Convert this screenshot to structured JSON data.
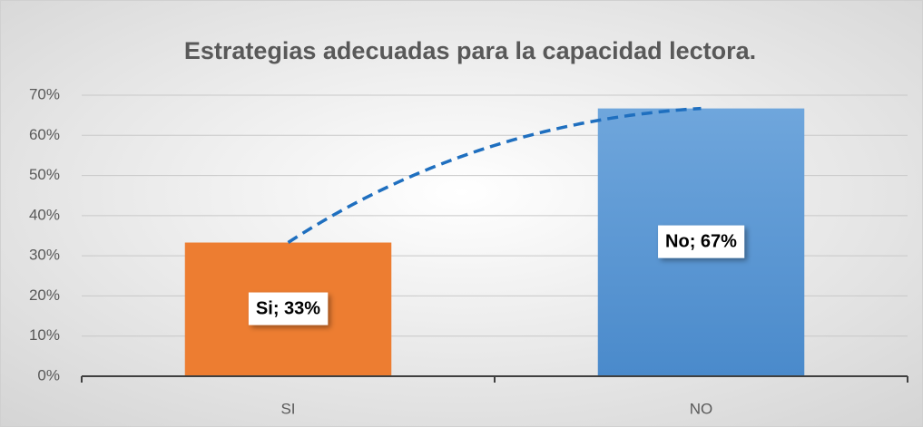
{
  "chart_data": {
    "type": "bar",
    "title": "Estrategias adecuadas para la capacidad lectora.",
    "categories": [
      "SI",
      "NO"
    ],
    "values": [
      33.3,
      66.7
    ],
    "value_labels": [
      "Si; 33%",
      "No; 67%"
    ],
    "colors": [
      "#ed7d31",
      "#5b9bd5"
    ],
    "ylim": [
      0,
      70
    ],
    "yticks": [
      {
        "value": 0,
        "label": "0%"
      },
      {
        "value": 10,
        "label": "10%"
      },
      {
        "value": 20,
        "label": "20%"
      },
      {
        "value": 30,
        "label": "30%"
      },
      {
        "value": 40,
        "label": "40%"
      },
      {
        "value": 50,
        "label": "50%"
      },
      {
        "value": 60,
        "label": "60%"
      },
      {
        "value": 70,
        "label": "70%"
      }
    ],
    "grid": true,
    "trendline": true,
    "trendline_color": "#1f6fbf"
  }
}
